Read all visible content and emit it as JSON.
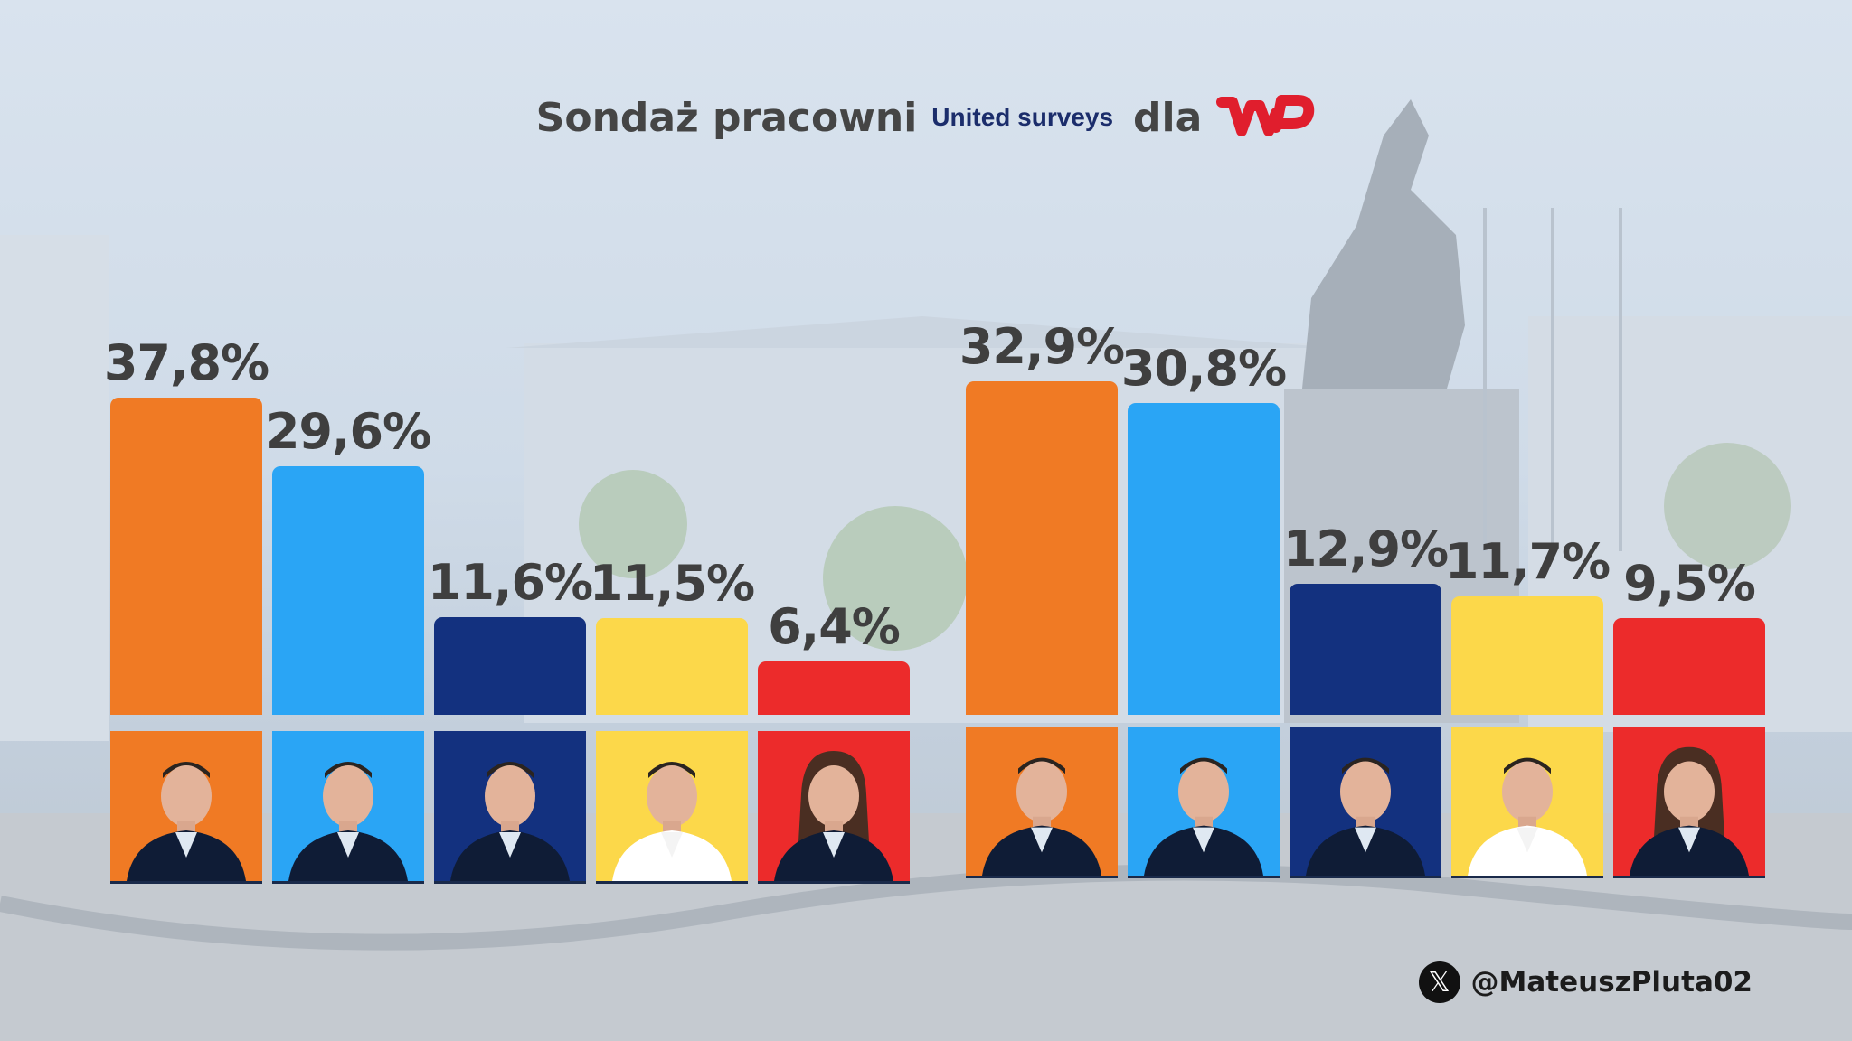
{
  "title": {
    "prefix": "Sondaż pracowni",
    "pollster": "United surveys",
    "connector": "dla",
    "logo_name": "wp-logo"
  },
  "handle": {
    "icon": "x-logo-icon",
    "text": "@MateuszPluta02"
  },
  "chart_data": [
    {
      "type": "bar",
      "categories": [
        "orange",
        "lightblue",
        "navy",
        "yellow",
        "red"
      ],
      "values": [
        37.8,
        29.6,
        11.6,
        11.5,
        6.4
      ],
      "labels": [
        "37,8%",
        "29,6%",
        "11,6%",
        "11,5%",
        "6,4%"
      ],
      "colors": [
        "#f07a24",
        "#2aa5f5",
        "#13317f",
        "#fcd84a",
        "#ec2b2b"
      ],
      "title": "",
      "xlabel": "",
      "ylabel": "",
      "ylim": [
        0,
        40
      ],
      "grid": false
    },
    {
      "type": "bar",
      "categories": [
        "orange",
        "lightblue",
        "navy",
        "yellow",
        "red"
      ],
      "values": [
        32.9,
        30.8,
        12.9,
        11.7,
        9.5
      ],
      "labels": [
        "32,9%",
        "30,8%",
        "12,9%",
        "11,7%",
        "9,5%"
      ],
      "colors": [
        "#f07a24",
        "#2aa5f5",
        "#13317f",
        "#fcd84a",
        "#ec2b2b"
      ],
      "title": "",
      "xlabel": "",
      "ylabel": "",
      "ylim": [
        0,
        40
      ],
      "grid": false
    }
  ]
}
